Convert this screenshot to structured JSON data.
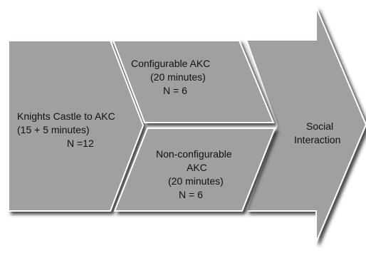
{
  "diagram": {
    "colors": {
      "fill": "#a0a0a0",
      "stroke": "#ffffff",
      "shadow": "#2a2a2a",
      "text": "#111111",
      "background": "#ffffff"
    },
    "stages": [
      {
        "id": "knights",
        "lines": [
          "Knights Castle to AKC",
          "(15 + 5 minutes)",
          "N =12"
        ]
      },
      {
        "id": "configurable",
        "lines": [
          "Configurable AKC",
          "(20 minutes)",
          "N = 6"
        ]
      },
      {
        "id": "nonconfigurable",
        "lines": [
          "Non-configurable",
          "AKC",
          "(20 minutes)",
          "N = 6"
        ]
      },
      {
        "id": "social",
        "lines": [
          "Social",
          "Interaction"
        ]
      }
    ]
  }
}
